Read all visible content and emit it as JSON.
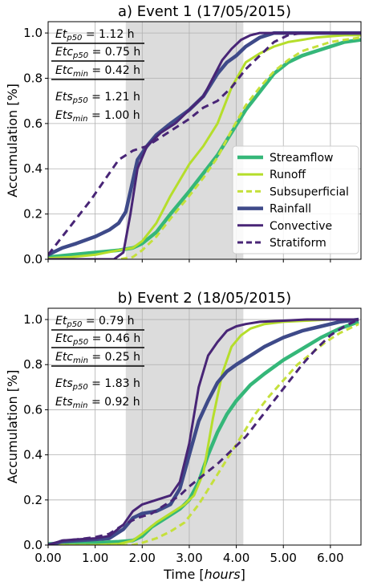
{
  "chart_data": [
    {
      "type": "line",
      "title": "a) Event 1 (17/05/2015)",
      "ylabel": "Accumulation [%]",
      "xlabel": "",
      "xlim": [
        0,
        6.65
      ],
      "ylim": [
        0,
        1.05
      ],
      "yticks": [
        "0.0",
        "0.2",
        "0.4",
        "0.6",
        "0.8",
        "1.0"
      ],
      "xticks": [],
      "grid": true,
      "shaded_interval": [
        1.65,
        4.15
      ],
      "legend_position": "right",
      "legend": [
        "Streamflow",
        "Runoff",
        "Subsuperficial",
        "Rainfall",
        "Convective",
        "Stratiform"
      ],
      "annotations": [
        "Et_p50 = 1.12 h",
        "Etc_p50 = 0.75 h",
        "Etc_min = 0.42 h",
        "Ets_p50 = 1.21 h",
        "Ets_min = 1.00 h"
      ],
      "series": [
        {
          "name": "Streamflow",
          "color": "#35b779",
          "width": 4.5,
          "dash": "",
          "x": [
            0,
            0.5,
            1.0,
            1.5,
            1.8,
            2.0,
            2.3,
            2.6,
            3.0,
            3.3,
            3.6,
            3.9,
            4.2,
            4.5,
            4.8,
            5.1,
            5.4,
            5.7,
            6.0,
            6.3,
            6.65
          ],
          "y": [
            0.01,
            0.02,
            0.03,
            0.04,
            0.05,
            0.07,
            0.12,
            0.2,
            0.3,
            0.38,
            0.46,
            0.56,
            0.66,
            0.74,
            0.82,
            0.87,
            0.9,
            0.92,
            0.94,
            0.96,
            0.97
          ]
        },
        {
          "name": "Runoff",
          "color": "#b5de2b",
          "width": 3,
          "dash": "",
          "x": [
            0,
            0.5,
            1.0,
            1.5,
            1.8,
            2.0,
            2.3,
            2.6,
            3.0,
            3.3,
            3.6,
            3.9,
            4.2,
            4.5,
            4.8,
            5.1,
            5.4,
            5.7,
            6.0,
            6.3,
            6.65
          ],
          "y": [
            0.005,
            0.01,
            0.02,
            0.04,
            0.05,
            0.08,
            0.16,
            0.28,
            0.42,
            0.5,
            0.6,
            0.76,
            0.87,
            0.91,
            0.94,
            0.96,
            0.97,
            0.98,
            0.985,
            0.99,
            0.99
          ]
        },
        {
          "name": "Subsuperficial",
          "color": "#c5e03c",
          "width": 3,
          "dash": "8,5",
          "x": [
            0,
            1.0,
            1.5,
            1.8,
            2.0,
            2.3,
            2.6,
            3.0,
            3.3,
            3.6,
            3.9,
            4.2,
            4.5,
            4.8,
            5.1,
            5.4,
            5.7,
            6.0,
            6.3,
            6.65
          ],
          "y": [
            0,
            0,
            0,
            0.01,
            0.04,
            0.1,
            0.18,
            0.28,
            0.36,
            0.45,
            0.57,
            0.68,
            0.76,
            0.83,
            0.88,
            0.92,
            0.94,
            0.96,
            0.97,
            0.98
          ]
        },
        {
          "name": "Rainfall",
          "color": "#3e4a89",
          "width": 4.5,
          "dash": "",
          "x": [
            0,
            0.3,
            0.6,
            1.0,
            1.3,
            1.5,
            1.65,
            1.75,
            1.9,
            2.1,
            2.3,
            2.6,
            3.0,
            3.3,
            3.6,
            3.8,
            4.0,
            4.2,
            4.5,
            4.8,
            5.2,
            6.0,
            6.65
          ],
          "y": [
            0.02,
            0.05,
            0.07,
            0.1,
            0.13,
            0.16,
            0.21,
            0.3,
            0.44,
            0.5,
            0.55,
            0.6,
            0.66,
            0.72,
            0.82,
            0.87,
            0.9,
            0.94,
            0.98,
            1.0,
            1.0,
            1.0,
            1.0
          ]
        },
        {
          "name": "Convective",
          "color": "#482576",
          "width": 3,
          "dash": "",
          "x": [
            0,
            0.5,
            1.0,
            1.4,
            1.6,
            1.75,
            1.9,
            2.1,
            2.4,
            2.7,
            3.0,
            3.3,
            3.5,
            3.7,
            3.9,
            4.1,
            4.3,
            4.5,
            4.8,
            6.65
          ],
          "y": [
            0,
            0,
            0,
            0,
            0.03,
            0.2,
            0.4,
            0.5,
            0.56,
            0.6,
            0.66,
            0.72,
            0.8,
            0.88,
            0.93,
            0.97,
            0.99,
            1.0,
            1.0,
            1.0
          ]
        },
        {
          "name": "Stratiform",
          "color": "#482576",
          "width": 3,
          "dash": "9,6",
          "x": [
            0,
            0.3,
            0.6,
            0.9,
            1.2,
            1.5,
            1.8,
            2.1,
            2.4,
            2.7,
            3.0,
            3.3,
            3.6,
            3.9,
            4.2,
            4.5,
            4.8,
            5.1,
            5.4,
            5.7,
            6.0,
            6.65
          ],
          "y": [
            0.02,
            0.1,
            0.18,
            0.26,
            0.35,
            0.44,
            0.48,
            0.5,
            0.54,
            0.58,
            0.62,
            0.67,
            0.7,
            0.76,
            0.84,
            0.9,
            0.96,
            0.99,
            1.0,
            1.0,
            1.0,
            1.0
          ]
        }
      ]
    },
    {
      "type": "line",
      "title": "b) Event 2 (18/05/2015)",
      "ylabel": "Accumulation [%]",
      "xlabel": "Time [hours]",
      "xlim": [
        0,
        6.65
      ],
      "ylim": [
        0,
        1.05
      ],
      "yticks": [
        "0.0",
        "0.2",
        "0.4",
        "0.6",
        "0.8",
        "1.0"
      ],
      "xticks": [
        "0.00",
        "1.00",
        "2.00",
        "3.00",
        "4.00",
        "5.00",
        "6.00"
      ],
      "grid": true,
      "shaded_interval": [
        1.65,
        4.15
      ],
      "legend_position": "none",
      "annotations": [
        "Et_p50 = 0.79 h",
        "Etc_p50 = 0.46 h",
        "Etc_min = 0.25 h",
        "Ets_p50 = 1.83 h",
        "Ets_min = 0.92 h"
      ],
      "series": [
        {
          "name": "Streamflow",
          "color": "#35b779",
          "width": 4.5,
          "dash": "",
          "x": [
            0,
            0.5,
            1.0,
            1.5,
            1.8,
            2.0,
            2.2,
            2.5,
            2.8,
            3.0,
            3.2,
            3.4,
            3.6,
            3.8,
            4.0,
            4.3,
            4.6,
            5.0,
            5.4,
            5.8,
            6.2,
            6.6
          ],
          "y": [
            0.005,
            0.01,
            0.01,
            0.015,
            0.02,
            0.04,
            0.08,
            0.12,
            0.16,
            0.2,
            0.28,
            0.4,
            0.5,
            0.58,
            0.64,
            0.71,
            0.76,
            0.82,
            0.87,
            0.92,
            0.96,
            0.99
          ]
        },
        {
          "name": "Runoff",
          "color": "#b5de2b",
          "width": 3,
          "dash": "",
          "x": [
            0,
            0.5,
            1.0,
            1.5,
            1.8,
            2.0,
            2.3,
            2.6,
            2.9,
            3.1,
            3.3,
            3.5,
            3.7,
            3.9,
            4.1,
            4.3,
            4.6,
            5.0,
            5.5,
            6.0,
            6.6
          ],
          "y": [
            0,
            0,
            0,
            0.005,
            0.02,
            0.05,
            0.1,
            0.14,
            0.18,
            0.22,
            0.32,
            0.56,
            0.76,
            0.88,
            0.93,
            0.96,
            0.98,
            0.99,
            0.995,
            1.0,
            1.0
          ]
        },
        {
          "name": "Subsuperficial",
          "color": "#c5e03c",
          "width": 3,
          "dash": "8,5",
          "x": [
            0,
            1.0,
            1.5,
            1.8,
            2.0,
            2.3,
            2.6,
            2.9,
            3.2,
            3.5,
            3.8,
            4.1,
            4.4,
            4.7,
            5.0,
            5.3,
            5.6,
            5.9,
            6.2,
            6.6
          ],
          "y": [
            0,
            0,
            0,
            0,
            0.01,
            0.03,
            0.06,
            0.1,
            0.18,
            0.28,
            0.38,
            0.48,
            0.58,
            0.66,
            0.73,
            0.8,
            0.85,
            0.9,
            0.94,
            0.98
          ]
        },
        {
          "name": "Rainfall",
          "color": "#3e4a89",
          "width": 4.5,
          "dash": "",
          "x": [
            0,
            0.3,
            0.6,
            1.0,
            1.3,
            1.6,
            1.8,
            2.0,
            2.3,
            2.6,
            2.8,
            3.0,
            3.2,
            3.4,
            3.6,
            3.8,
            4.0,
            4.3,
            4.6,
            5.0,
            5.4,
            5.8,
            6.2,
            6.6
          ],
          "y": [
            0,
            0.015,
            0.02,
            0.025,
            0.03,
            0.07,
            0.12,
            0.14,
            0.15,
            0.18,
            0.25,
            0.4,
            0.55,
            0.64,
            0.72,
            0.77,
            0.8,
            0.84,
            0.88,
            0.92,
            0.95,
            0.97,
            0.99,
            1.0
          ]
        },
        {
          "name": "Convective",
          "color": "#482576",
          "width": 3,
          "dash": "",
          "x": [
            0,
            0.3,
            0.6,
            1.0,
            1.3,
            1.6,
            1.8,
            2.0,
            2.3,
            2.6,
            2.8,
            3.0,
            3.2,
            3.4,
            3.6,
            3.8,
            4.0,
            4.2,
            4.5,
            5.0,
            5.5,
            6.0,
            6.6
          ],
          "y": [
            0,
            0.02,
            0.025,
            0.03,
            0.04,
            0.09,
            0.15,
            0.18,
            0.2,
            0.22,
            0.28,
            0.45,
            0.7,
            0.84,
            0.9,
            0.95,
            0.97,
            0.98,
            0.99,
            0.995,
            1.0,
            1.0,
            1.0
          ]
        },
        {
          "name": "Stratiform",
          "color": "#482576",
          "width": 3,
          "dash": "9,6",
          "x": [
            0,
            0.3,
            0.6,
            1.0,
            1.3,
            1.6,
            1.9,
            2.2,
            2.5,
            2.8,
            3.0,
            3.3,
            3.6,
            3.9,
            4.2,
            4.5,
            4.8,
            5.1,
            5.4,
            5.7,
            6.0,
            6.3,
            6.6
          ],
          "y": [
            0,
            0.02,
            0.025,
            0.035,
            0.05,
            0.09,
            0.12,
            0.14,
            0.18,
            0.22,
            0.26,
            0.31,
            0.36,
            0.42,
            0.48,
            0.56,
            0.64,
            0.72,
            0.8,
            0.87,
            0.93,
            0.97,
            1.0
          ]
        }
      ]
    }
  ]
}
